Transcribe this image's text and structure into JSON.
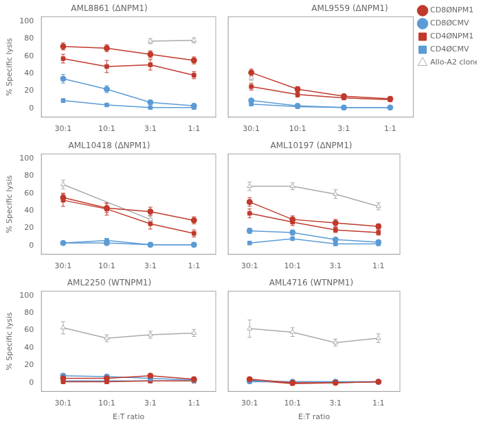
{
  "chart_data": [
    {
      "type": "line",
      "title": "AML8861 (ΔNPM1)",
      "ylabel": "% Specific lysis",
      "categories": [
        "30:1",
        "10:1",
        "3:1",
        "1:1"
      ],
      "ylim": [
        -10,
        105
      ],
      "yticks": [
        0,
        20,
        40,
        60,
        80,
        100
      ],
      "grid": false,
      "series": [
        {
          "name": "CD8ØNPM1",
          "color": "#c0392b",
          "marker": "circle",
          "values": [
            71,
            69,
            62,
            55
          ],
          "errors": [
            4,
            4,
            4,
            4
          ]
        },
        {
          "name": "CD8ØCMV",
          "color": "#5b9bd5",
          "marker": "circle",
          "values": [
            34,
            22,
            7,
            3
          ],
          "errors": [
            5,
            4,
            2,
            1
          ]
        },
        {
          "name": "CD4ØNPM1",
          "color": "#c0392b",
          "marker": "square",
          "values": [
            57,
            48,
            50,
            38
          ],
          "errors": [
            5,
            7,
            6,
            4
          ]
        },
        {
          "name": "CD4ØCMV",
          "color": "#5b9bd5",
          "marker": "square",
          "values": [
            9,
            4,
            1,
            1
          ],
          "errors": [
            2,
            1,
            1,
            1
          ]
        },
        {
          "name": "Allo-A2 clone",
          "color": "#aaaaaa",
          "marker": "open_triangle",
          "values": [
            null,
            null,
            77,
            78
          ],
          "errors": [
            null,
            null,
            3,
            3
          ]
        }
      ]
    },
    {
      "type": "line",
      "title": "AML9559 (ΔNPM1)",
      "tick_labels": "x",
      "legend": "right",
      "categories": [
        "30:1",
        "10:1",
        "3:1",
        "1:1"
      ],
      "ylim": [
        -10,
        105
      ],
      "yticks": [
        0,
        20,
        40,
        60,
        80,
        100
      ],
      "grid": false,
      "series": [
        {
          "name": "CD8ØNPM1",
          "color": "#c0392b",
          "marker": "circle",
          "values": [
            41,
            22,
            14,
            11
          ],
          "errors": [
            4,
            3,
            2,
            2
          ]
        },
        {
          "name": "CD8ØCMV",
          "color": "#5b9bd5",
          "marker": "circle",
          "values": [
            9,
            3,
            1,
            1
          ],
          "errors": [
            2,
            1,
            1,
            1
          ]
        },
        {
          "name": "CD4ØNPM1",
          "color": "#c0392b",
          "marker": "square",
          "values": [
            25,
            16,
            12,
            10
          ],
          "errors": [
            4,
            3,
            2,
            2
          ]
        },
        {
          "name": "CD4ØCMV",
          "color": "#5b9bd5",
          "marker": "square",
          "values": [
            5,
            2,
            1,
            1
          ],
          "errors": [
            1,
            1,
            1,
            1
          ]
        },
        {
          "name": "Allo-A2 clone",
          "color": "#aaaaaa",
          "marker": "open_triangle",
          "values": [
            35,
            null,
            null,
            null
          ],
          "errors": [
            3,
            null,
            null,
            null
          ]
        }
      ]
    },
    {
      "type": "line",
      "title": "AML10418 (ΔNPM1)",
      "ylabel": "% Specific lysis",
      "categories": [
        "30:1",
        "10:1",
        "3:1",
        "1:1"
      ],
      "ylim": [
        -10,
        105
      ],
      "yticks": [
        0,
        20,
        40,
        60,
        80,
        100
      ],
      "grid": false,
      "series": [
        {
          "name": "CD8ØNPM1",
          "color": "#c0392b",
          "marker": "circle",
          "values": [
            55,
            43,
            39,
            29
          ],
          "errors": [
            5,
            5,
            5,
            4
          ]
        },
        {
          "name": "CD8ØCMV",
          "color": "#5b9bd5",
          "marker": "circle",
          "values": [
            3,
            3,
            1,
            1
          ],
          "errors": [
            1,
            1,
            1,
            1
          ]
        },
        {
          "name": "CD4ØNPM1",
          "color": "#c0392b",
          "marker": "square",
          "values": [
            52,
            42,
            25,
            14
          ],
          "errors": [
            7,
            7,
            6,
            4
          ]
        },
        {
          "name": "CD4ØCMV",
          "color": "#5b9bd5",
          "marker": "square",
          "values": [
            3,
            6,
            1,
            1
          ],
          "errors": [
            1,
            2,
            1,
            1
          ]
        },
        {
          "name": "Allo-A2 clone",
          "color": "#aaaaaa",
          "marker": "open_triangle",
          "values": [
            70,
            null,
            30,
            null
          ],
          "errors": [
            5,
            null,
            5,
            null
          ]
        }
      ]
    },
    {
      "type": "line",
      "title": "AML10197 (ΔNPM1)",
      "tick_labels": "x",
      "categories": [
        "30:1",
        "10:1",
        "3:1",
        "1:1"
      ],
      "ylim": [
        -10,
        105
      ],
      "yticks": [
        0,
        20,
        40,
        60,
        80,
        100
      ],
      "grid": false,
      "series": [
        {
          "name": "CD8ØNPM1",
          "color": "#c0392b",
          "marker": "circle",
          "values": [
            50,
            30,
            26,
            22
          ],
          "errors": [
            5,
            4,
            4,
            3
          ]
        },
        {
          "name": "CD8ØCMV",
          "color": "#5b9bd5",
          "marker": "circle",
          "values": [
            17,
            15,
            7,
            4
          ],
          "errors": [
            3,
            3,
            2,
            1
          ]
        },
        {
          "name": "CD4ØNPM1",
          "color": "#c0392b",
          "marker": "square",
          "values": [
            37,
            27,
            18,
            15
          ],
          "errors": [
            5,
            4,
            3,
            3
          ]
        },
        {
          "name": "CD4ØCMV",
          "color": "#5b9bd5",
          "marker": "square",
          "values": [
            3,
            8,
            2,
            2
          ],
          "errors": [
            1,
            2,
            1,
            1
          ]
        },
        {
          "name": "Allo-A2 clone",
          "color": "#aaaaaa",
          "marker": "open_triangle",
          "values": [
            68,
            68,
            59,
            45
          ],
          "errors": [
            5,
            4,
            5,
            4
          ]
        }
      ]
    },
    {
      "type": "line",
      "title": "AML2250 (WTNPM1)",
      "ylabel": "% Specific lysis",
      "xlabel": "E:T ratio",
      "categories": [
        "30:1",
        "10:1",
        "3:1",
        "1:1"
      ],
      "ylim": [
        -10,
        105
      ],
      "yticks": [
        0,
        20,
        40,
        60,
        80,
        100
      ],
      "grid": false,
      "series": [
        {
          "name": "CD8ØNPM1",
          "color": "#c0392b",
          "marker": "circle",
          "values": [
            5,
            5,
            8,
            4
          ],
          "errors": [
            2,
            2,
            2,
            1
          ]
        },
        {
          "name": "CD8ØCMV",
          "color": "#5b9bd5",
          "marker": "circle",
          "values": [
            8,
            7,
            5,
            3
          ],
          "errors": [
            2,
            2,
            1,
            1
          ]
        },
        {
          "name": "CD4ØNPM1",
          "color": "#c0392b",
          "marker": "square",
          "values": [
            1,
            1,
            2,
            2
          ],
          "errors": [
            1,
            1,
            1,
            1
          ]
        },
        {
          "name": "CD4ØCMV",
          "color": "#5b9bd5",
          "marker": "square",
          "values": [
            2,
            2,
            2,
            2
          ],
          "errors": [
            1,
            1,
            1,
            1
          ]
        },
        {
          "name": "Allo-A2 clone",
          "color": "#aaaaaa",
          "marker": "open_triangle",
          "values": [
            63,
            51,
            55,
            57
          ],
          "errors": [
            7,
            4,
            4,
            4
          ]
        }
      ]
    },
    {
      "type": "line",
      "title": "AML4716 (WTNPM1)",
      "xlabel": "E:T ratio",
      "tick_labels": "x",
      "categories": [
        "30:1",
        "10:1",
        "3:1",
        "1:1"
      ],
      "ylim": [
        -10,
        105
      ],
      "yticks": [
        0,
        20,
        40,
        60,
        80,
        100
      ],
      "grid": false,
      "series": [
        {
          "name": "CD8ØNPM1",
          "color": "#c0392b",
          "marker": "circle",
          "values": [
            4,
            0,
            0,
            1
          ],
          "errors": [
            2,
            1,
            1,
            1
          ]
        },
        {
          "name": "CD8ØCMV",
          "color": "#5b9bd5",
          "marker": "circle",
          "values": [
            2,
            1,
            1,
            1
          ],
          "errors": [
            1,
            1,
            1,
            1
          ]
        },
        {
          "name": "CD4ØNPM1",
          "color": "#c0392b",
          "marker": "square",
          "values": [
            3,
            -1,
            0,
            1
          ],
          "errors": [
            2,
            1,
            1,
            1
          ]
        },
        {
          "name": "CD4ØCMV",
          "color": "#5b9bd5",
          "marker": "square",
          "values": [
            1,
            1,
            1,
            1
          ],
          "errors": [
            1,
            1,
            1,
            1
          ]
        },
        {
          "name": "Allo-A2 clone",
          "color": "#aaaaaa",
          "marker": "open_triangle",
          "values": [
            62,
            58,
            46,
            51
          ],
          "errors": [
            10,
            5,
            4,
            5
          ]
        }
      ]
    }
  ]
}
